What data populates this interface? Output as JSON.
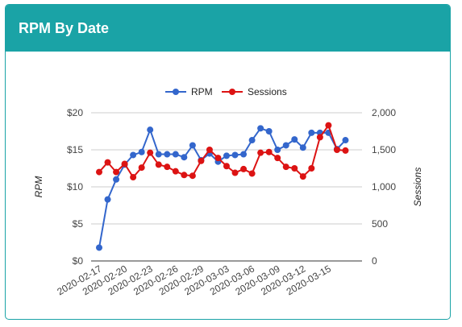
{
  "header": {
    "title": "RPM By Date"
  },
  "colors": {
    "header_bg": "#1aa3a6",
    "rpm": "#3366cc",
    "sessions": "#dc1313"
  },
  "chart_data": {
    "type": "line",
    "title": "",
    "x": [
      "2020-02-17",
      "2020-02-18",
      "2020-02-19",
      "2020-02-20",
      "2020-02-21",
      "2020-02-22",
      "2020-02-23",
      "2020-02-24",
      "2020-02-25",
      "2020-02-26",
      "2020-02-27",
      "2020-02-28",
      "2020-02-29",
      "2020-03-01",
      "2020-03-02",
      "2020-03-03",
      "2020-03-04",
      "2020-03-05",
      "2020-03-06",
      "2020-03-07",
      "2020-03-08",
      "2020-03-09",
      "2020-03-10",
      "2020-03-11",
      "2020-03-12",
      "2020-03-13",
      "2020-03-14",
      "2020-03-15",
      "2020-03-16",
      "2020-03-17",
      "2020-03-18"
    ],
    "x_tick_labels": [
      "2020-02-17",
      "2020-02-20",
      "2020-02-23",
      "2020-02-26",
      "2020-02-29",
      "2020-03-03",
      "2020-03-06",
      "2020-03-09",
      "2020-03-12",
      "2020-03-15"
    ],
    "series": [
      {
        "name": "RPM",
        "axis": "left",
        "values": [
          1.8,
          8.3,
          11.0,
          13.0,
          14.3,
          14.7,
          17.7,
          14.4,
          14.4,
          14.4,
          14.0,
          15.6,
          13.6,
          14.5,
          13.4,
          14.2,
          14.3,
          14.4,
          16.3,
          17.9,
          17.5,
          15.0,
          15.6,
          16.4,
          15.3,
          17.3,
          17.3,
          17.3,
          15.1,
          16.3,
          null
        ]
      },
      {
        "name": "Sessions",
        "axis": "right",
        "values": [
          1200,
          1330,
          1200,
          1310,
          1130,
          1260,
          1460,
          1300,
          1270,
          1210,
          1160,
          1150,
          1350,
          1500,
          1390,
          1280,
          1190,
          1240,
          1180,
          1460,
          1470,
          1390,
          1270,
          1250,
          1140,
          1250,
          1670,
          1830,
          1500,
          1490,
          null
        ]
      }
    ],
    "y_left": {
      "ticks": [
        "$0",
        "$5",
        "$10",
        "$15",
        "$20"
      ],
      "range": [
        0,
        20
      ],
      "label": "RPM"
    },
    "y_right": {
      "ticks": [
        "0",
        "500",
        "1,000",
        "1,500",
        "2,000"
      ],
      "range": [
        0,
        2000
      ],
      "label": "Sessions"
    },
    "legend": {
      "position": "top",
      "items": [
        "RPM",
        "Sessions"
      ]
    },
    "grid": true
  }
}
